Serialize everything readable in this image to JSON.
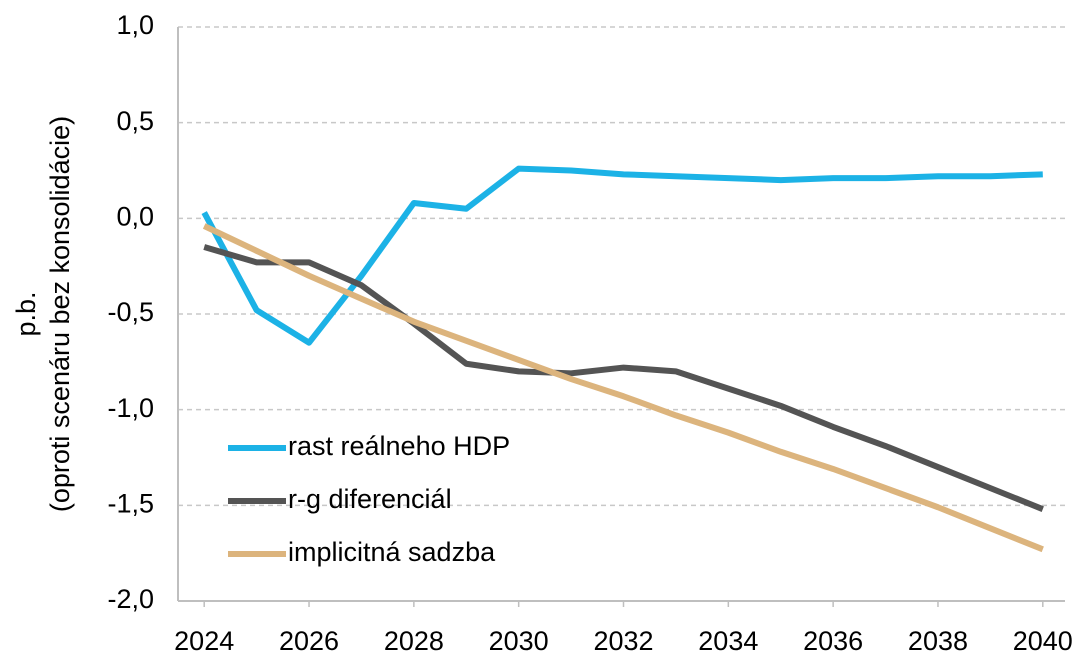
{
  "chart_data": {
    "type": "line",
    "ylabel": [
      "p.b.",
      "(oproti scenáru bez konsolidácie)"
    ],
    "x": [
      2024,
      2025,
      2026,
      2027,
      2028,
      2029,
      2030,
      2031,
      2032,
      2033,
      2034,
      2035,
      2036,
      2037,
      2038,
      2039,
      2040
    ],
    "xlim": [
      2023.5,
      2040.5
    ],
    "xticks": [
      2024,
      2026,
      2028,
      2030,
      2032,
      2034,
      2036,
      2038,
      2040
    ],
    "ylim": [
      -2.0,
      1.0
    ],
    "yticks": [
      {
        "value": 1.0,
        "label": "1,0"
      },
      {
        "value": 0.5,
        "label": "0,5"
      },
      {
        "value": 0,
        "label": "0,0"
      },
      {
        "value": -0.5,
        "label": "-0,5"
      },
      {
        "value": -1.0,
        "label": "-1,0"
      },
      {
        "value": -1.5,
        "label": "-1,5"
      },
      {
        "value": -2.0,
        "label": "-2,0"
      }
    ],
    "grid": true,
    "legend": "lower left",
    "series": [
      {
        "name": "rast reálneho HDP",
        "color": "#1cb2e6",
        "values": [
          0.03,
          -0.48,
          -0.65,
          -0.3,
          0.08,
          0.05,
          0.26,
          0.25,
          0.23,
          0.22,
          0.21,
          0.2,
          0.21,
          0.21,
          0.22,
          0.22,
          0.23
        ]
      },
      {
        "name": "r-g diferenciál",
        "color": "#545454",
        "values": [
          -0.15,
          -0.23,
          -0.23,
          -0.35,
          -0.55,
          -0.76,
          -0.8,
          -0.81,
          -0.78,
          -0.8,
          -0.89,
          -0.98,
          -1.09,
          -1.19,
          -1.3,
          -1.41,
          -1.52
        ]
      },
      {
        "name": "implicitná sadzba",
        "color": "#dcb47d",
        "values": [
          -0.04,
          -0.17,
          -0.3,
          -0.42,
          -0.54,
          -0.64,
          -0.74,
          -0.84,
          -0.93,
          -1.03,
          -1.12,
          -1.22,
          -1.31,
          -1.41,
          -1.51,
          -1.62,
          -1.73
        ]
      }
    ]
  }
}
